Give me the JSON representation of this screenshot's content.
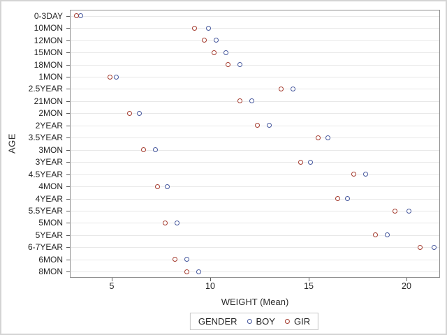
{
  "figure": {
    "y_axis_title": "AGE",
    "x_axis_title": "WEIGHT (Mean)"
  },
  "legend": {
    "title": "GENDER",
    "items": [
      {
        "label": "BOY",
        "color": "#44569C"
      },
      {
        "label": "GIR",
        "color": "#A43B2E"
      }
    ]
  },
  "chart_data": {
    "type": "scatter",
    "subtype": "horizontal-dot-plot",
    "title": "",
    "xlabel": "WEIGHT (Mean)",
    "ylabel": "AGE",
    "xlim": [
      2.85,
      21.7
    ],
    "xticks": [
      5,
      10,
      15,
      20
    ],
    "grid": "horizontal category gridlines",
    "legend_position": "bottom-center",
    "categories": [
      "0-3DAY",
      "10MON",
      "12MON",
      "15MON",
      "18MON",
      "1MON",
      "2.5YEAR",
      "21MON",
      "2MON",
      "2YEAR",
      "3.5YEAR",
      "3MON",
      "3YEAR",
      "4.5YEAR",
      "4MON",
      "4YEAR",
      "5.5YEAR",
      "5MON",
      "5YEAR",
      "6-7YEAR",
      "6MON",
      "8MON"
    ],
    "series": [
      {
        "name": "BOY",
        "color": "#44569C",
        "marker": "open-circle",
        "values": [
          3.4,
          9.9,
          10.3,
          10.8,
          11.5,
          5.2,
          14.2,
          12.1,
          6.4,
          13.0,
          16.0,
          7.2,
          15.1,
          17.9,
          7.8,
          17.0,
          20.1,
          8.3,
          19.0,
          21.4,
          8.8,
          9.4
        ]
      },
      {
        "name": "GIR",
        "color": "#A43B2E",
        "marker": "open-circle",
        "values": [
          3.2,
          9.2,
          9.7,
          10.2,
          10.9,
          4.9,
          13.6,
          11.5,
          5.9,
          12.4,
          15.5,
          6.6,
          14.6,
          17.3,
          7.3,
          16.5,
          19.4,
          7.7,
          18.4,
          20.7,
          8.2,
          8.8
        ]
      }
    ]
  }
}
